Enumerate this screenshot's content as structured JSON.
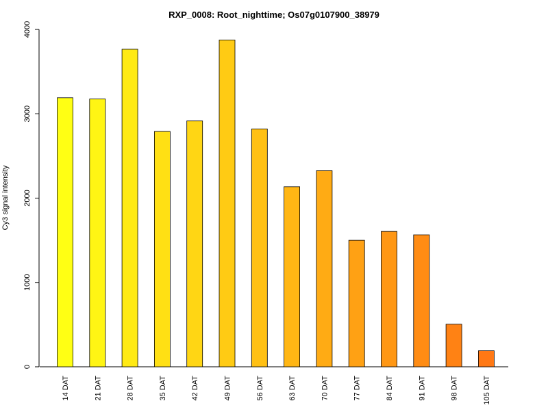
{
  "chart_data": {
    "type": "bar",
    "title": "RXP_0008: Root_nighttime; Os07g0107900_38979",
    "xlabel": "",
    "ylabel": "Cy3 signal intensity",
    "ylim": [
      0,
      4000
    ],
    "yticks": [
      0,
      1000,
      2000,
      3000,
      4000
    ],
    "categories": [
      "14 DAT",
      "21 DAT",
      "28 DAT",
      "35 DAT",
      "42 DAT",
      "49 DAT",
      "56 DAT",
      "63 DAT",
      "70 DAT",
      "77 DAT",
      "84 DAT",
      "91 DAT",
      "98 DAT",
      "105 DAT"
    ],
    "values": [
      3190,
      3175,
      3765,
      2790,
      2915,
      3875,
      2820,
      2135,
      2325,
      1500,
      1605,
      1565,
      505,
      190
    ],
    "colors": [
      "#FFFF14",
      "#FFF514",
      "#FFEA14",
      "#FFE014",
      "#FFD614",
      "#FFCB14",
      "#FFC014",
      "#FFB614",
      "#FFAB14",
      "#FFA114",
      "#FF9714",
      "#FF8C14",
      "#FF8214",
      "#FF7814"
    ],
    "grid": false,
    "legend": "none"
  }
}
